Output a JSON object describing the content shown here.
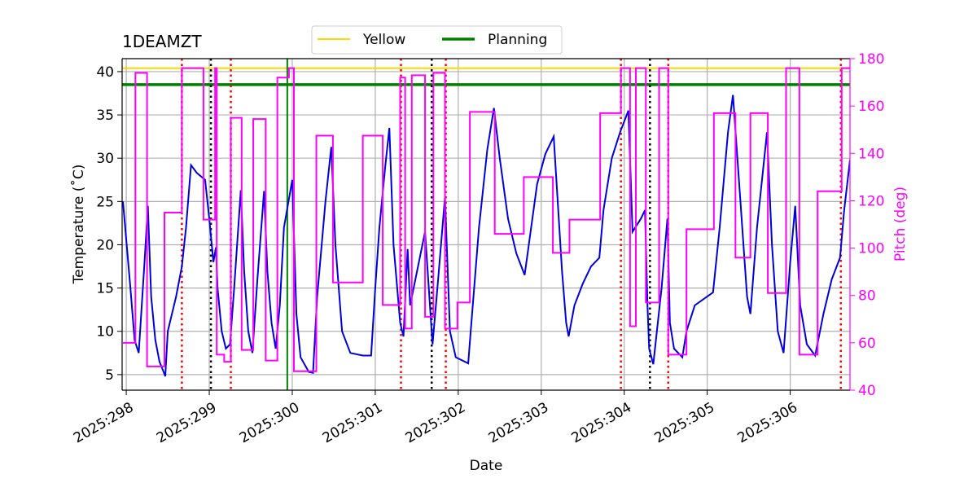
{
  "chart_data": {
    "type": "line",
    "title": "1DEAMZT",
    "xlabel": "Date",
    "ylabel": "Temperature ($^\\circ$C)",
    "y2label": "Pitch (deg)",
    "y2color": "#ff00ff",
    "xlim": [
      297.95,
      306.72
    ],
    "ylim": [
      3.2,
      41.5
    ],
    "y2lim": [
      40,
      180
    ],
    "xticks": [
      {
        "value": 298,
        "label": "2025:298"
      },
      {
        "value": 299,
        "label": "2025:299"
      },
      {
        "value": 300,
        "label": "2025:300"
      },
      {
        "value": 301,
        "label": "2025:301"
      },
      {
        "value": 302,
        "label": "2025:302"
      },
      {
        "value": 303,
        "label": "2025:303"
      },
      {
        "value": 304,
        "label": "2025:304"
      },
      {
        "value": 305,
        "label": "2025:305"
      },
      {
        "value": 306,
        "label": "2025:306"
      }
    ],
    "yticks": [
      5,
      10,
      15,
      20,
      25,
      30,
      35,
      40
    ],
    "y2ticks": [
      40,
      60,
      80,
      100,
      120,
      140,
      160,
      180
    ],
    "grid": true,
    "legend": "upper center",
    "limits": [
      {
        "name": "Yellow",
        "color": "#ffd700",
        "value": 40.4
      },
      {
        "name": "Planning",
        "color": "#008000",
        "value": 38.5
      }
    ],
    "vlines": [
      {
        "color": "#008000",
        "style": "solid",
        "x": [
          299.94
        ]
      },
      {
        "color": "#ff0000",
        "style": "dotted",
        "x": [
          298.67,
          299.26,
          301.31,
          301.85,
          303.96,
          304.53,
          306.61
        ]
      },
      {
        "color": "#000000",
        "style": "dotted",
        "x": [
          299.02,
          301.68,
          304.31
        ]
      }
    ],
    "series": [
      {
        "color": "#0000dd",
        "axis": "y",
        "drawstyle": "default",
        "x": [
          297.96,
          298.05,
          298.1,
          298.15,
          298.22,
          298.26,
          298.3,
          298.35,
          298.4,
          298.45,
          298.47,
          298.5,
          298.6,
          298.67,
          298.72,
          298.78,
          298.85,
          298.95,
          299.0,
          299.05,
          299.08,
          299.1,
          299.15,
          299.2,
          299.25,
          299.3,
          299.38,
          299.42,
          299.47,
          299.52,
          299.58,
          299.66,
          299.7,
          299.75,
          299.8,
          299.85,
          299.9,
          300.0,
          300.05,
          300.1,
          300.2,
          300.25,
          300.3,
          300.4,
          300.47,
          300.52,
          300.6,
          300.7,
          300.85,
          300.95,
          301.0,
          301.05,
          301.12,
          301.17,
          301.22,
          301.3,
          301.34,
          301.39,
          301.42,
          301.6,
          301.69,
          301.74,
          301.84,
          301.9,
          301.97,
          302.12,
          302.15,
          302.25,
          302.35,
          302.43,
          302.5,
          302.6,
          302.7,
          302.8,
          302.85,
          302.95,
          303.05,
          303.15,
          303.25,
          303.3,
          303.33,
          303.4,
          303.5,
          303.6,
          303.7,
          303.75,
          303.85,
          303.95,
          304.05,
          304.1,
          304.2,
          304.25,
          304.28,
          304.3,
          304.35,
          304.45,
          304.52,
          304.55,
          304.6,
          304.7,
          304.75,
          304.85,
          305.07,
          305.15,
          305.25,
          305.31,
          305.4,
          305.48,
          305.52,
          305.6,
          305.72,
          305.78,
          305.85,
          305.92,
          306.0,
          306.06,
          306.12,
          306.2,
          306.3,
          306.4,
          306.5,
          306.6,
          306.65,
          306.72
        ],
        "values": [
          25,
          15,
          9,
          7.5,
          18,
          24.5,
          14,
          9,
          6.5,
          5.3,
          4.8,
          10,
          14,
          17.5,
          22,
          29.2,
          28.3,
          27.5,
          23,
          18,
          19.7,
          15,
          10,
          8,
          8.5,
          15,
          26.3,
          17,
          10,
          7.5,
          16,
          26.2,
          17,
          11,
          8,
          13,
          22,
          27.5,
          12,
          7,
          5.3,
          5.2,
          14,
          25,
          31.3,
          20,
          10,
          7.5,
          7.2,
          7.2,
          15,
          22,
          29,
          33.5,
          20,
          11,
          9.4,
          19.5,
          13,
          21.5,
          8.5,
          14,
          25.5,
          10,
          7,
          6.3,
          10,
          22,
          31,
          35.8,
          30,
          23,
          19,
          16.5,
          20,
          27,
          30.5,
          32.5,
          17,
          11,
          9.4,
          13,
          15.5,
          17.5,
          18.5,
          24,
          30,
          33,
          35.5,
          21.5,
          23,
          24,
          13,
          8,
          6.2,
          15,
          23,
          11,
          8,
          7,
          10,
          13,
          14.5,
          22,
          33,
          37.3,
          25,
          14,
          12,
          22,
          33,
          20,
          10,
          7.5,
          18,
          24.5,
          13,
          8.5,
          7.2,
          12,
          16,
          18.5,
          24,
          29.8
        ]
      },
      {
        "color": "#ff00ff",
        "axis": "y2",
        "drawstyle": "steps-post",
        "x": [
          297.96,
          298.11,
          298.25,
          298.46,
          298.67,
          298.93,
          299.07,
          299.09,
          299.18,
          299.26,
          299.39,
          299.53,
          299.68,
          299.82,
          299.96,
          300.02,
          300.29,
          300.49,
          300.85,
          301.09,
          301.3,
          301.36,
          301.44,
          301.6,
          301.7,
          301.84,
          301.99,
          302.14,
          302.44,
          302.79,
          303.14,
          303.34,
          303.71,
          303.96,
          304.07,
          304.14,
          304.26,
          304.42,
          304.53,
          304.75,
          305.08,
          305.34,
          305.52,
          305.73,
          305.95,
          306.11,
          306.33,
          306.62
        ],
        "values": [
          60,
          174,
          50,
          115,
          176,
          112,
          176,
          55,
          52,
          155,
          57,
          154.5,
          52.5,
          172,
          176,
          48,
          147.5,
          85.5,
          147.5,
          76,
          172,
          66,
          173,
          71,
          174,
          66,
          77,
          157.5,
          106,
          130,
          98,
          112,
          157,
          176,
          67,
          176,
          77,
          176,
          55,
          108,
          157,
          96,
          157,
          81,
          176,
          55,
          124,
          176
        ]
      }
    ]
  }
}
